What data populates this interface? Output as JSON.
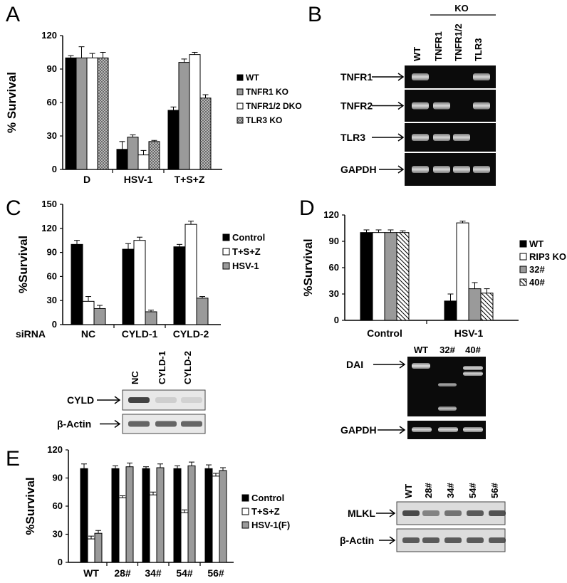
{
  "panels": [
    "A",
    "B",
    "C",
    "D",
    "E"
  ],
  "chart_data": [
    {
      "id": "A",
      "type": "bar",
      "ylabel": "% Survival",
      "ylim": [
        0,
        120
      ],
      "yticks": [
        0,
        30,
        60,
        90,
        120
      ],
      "categories": [
        "D",
        "HSV-1",
        "T+S+Z"
      ],
      "series": [
        {
          "name": "WT",
          "pattern": "black",
          "values": [
            100,
            18,
            53
          ],
          "errors": [
            2,
            7,
            3
          ]
        },
        {
          "name": "TNFR1 KO",
          "pattern": "gray",
          "values": [
            100,
            29,
            96
          ],
          "errors": [
            10,
            2,
            3
          ]
        },
        {
          "name": "TNFR1/2 DKO",
          "pattern": "white",
          "values": [
            100,
            13,
            103
          ],
          "errors": [
            4,
            4,
            2
          ]
        },
        {
          "name": "TLR3 KO",
          "pattern": "checker",
          "values": [
            100,
            25,
            64
          ],
          "errors": [
            5,
            1,
            3
          ]
        }
      ]
    },
    {
      "id": "C",
      "type": "bar",
      "ylabel": "%Survival",
      "ylim": [
        0,
        150
      ],
      "yticks": [
        0,
        30,
        60,
        90,
        120,
        150
      ],
      "xprefix": "siRNA",
      "categories": [
        "NC",
        "CYLD-1",
        "CYLD-2"
      ],
      "series": [
        {
          "name": "Control",
          "pattern": "black",
          "values": [
            100,
            94,
            97
          ],
          "errors": [
            5,
            7,
            3
          ]
        },
        {
          "name": "T+S+Z",
          "pattern": "white",
          "values": [
            29,
            105,
            125
          ],
          "errors": [
            6,
            4,
            4
          ]
        },
        {
          "name": "HSV-1",
          "pattern": "gray",
          "values": [
            20,
            16,
            33
          ],
          "errors": [
            4,
            2,
            2
          ]
        }
      ]
    },
    {
      "id": "D",
      "type": "bar",
      "ylabel": "%Survival",
      "ylim": [
        0,
        120
      ],
      "yticks": [
        0,
        30,
        60,
        90,
        120
      ],
      "categories": [
        "Control",
        "HSV-1"
      ],
      "series": [
        {
          "name": "WT",
          "pattern": "black",
          "values": [
            100,
            22
          ],
          "errors": [
            3,
            8
          ]
        },
        {
          "name": "RIP3 KO",
          "pattern": "white",
          "values": [
            100,
            111
          ],
          "errors": [
            3,
            2
          ]
        },
        {
          "name": "32#",
          "pattern": "gray",
          "values": [
            100,
            36
          ],
          "errors": [
            3,
            7
          ]
        },
        {
          "name": "40#",
          "pattern": "hatch",
          "values": [
            100,
            31
          ],
          "errors": [
            2,
            5
          ]
        }
      ]
    },
    {
      "id": "E",
      "type": "bar",
      "ylabel": "%Survival",
      "ylim": [
        0,
        120
      ],
      "yticks": [
        0,
        30,
        60,
        90,
        120
      ],
      "categories": [
        "WT",
        "28#",
        "34#",
        "54#",
        "56#"
      ],
      "series": [
        {
          "name": "Control",
          "pattern": "black",
          "values": [
            100,
            100,
            100,
            100,
            100
          ],
          "errors": [
            5,
            3,
            2,
            3,
            4
          ]
        },
        {
          "name": "T+S+Z",
          "pattern": "white",
          "values": [
            25,
            69,
            72,
            53,
            92
          ],
          "errors": [
            3,
            2,
            3,
            3,
            3
          ]
        },
        {
          "name": "HSV-1(F)",
          "pattern": "gray",
          "values": [
            31,
            102,
            101,
            103,
            98
          ],
          "errors": [
            3,
            4,
            4,
            4,
            3
          ]
        }
      ]
    }
  ],
  "blots": {
    "B": {
      "group": "KO",
      "lanes": [
        "WT",
        "TNFR1",
        "TNFR1/2",
        "TLR3"
      ],
      "rows": [
        "TNFR1",
        "TNFR2",
        "TLR3",
        "GAPDH"
      ]
    },
    "C": {
      "lanes": [
        "NC",
        "CYLD-1",
        "CYLD-2"
      ],
      "rows": [
        "CYLD",
        "β-Actin"
      ]
    },
    "D": {
      "lanes": [
        "WT",
        "32#",
        "40#"
      ],
      "rows": [
        "DAI",
        "GAPDH"
      ]
    },
    "E": {
      "lanes": [
        "WT",
        "28#",
        "34#",
        "54#",
        "56#"
      ],
      "rows": [
        "MLKL",
        "β-Actin"
      ]
    }
  },
  "colors": {
    "black": "#000000",
    "gray": "#9a9a9a",
    "white": "#ffffff",
    "blot_bg": "#0b0b0b",
    "band_dark": "#3a3a3a"
  }
}
